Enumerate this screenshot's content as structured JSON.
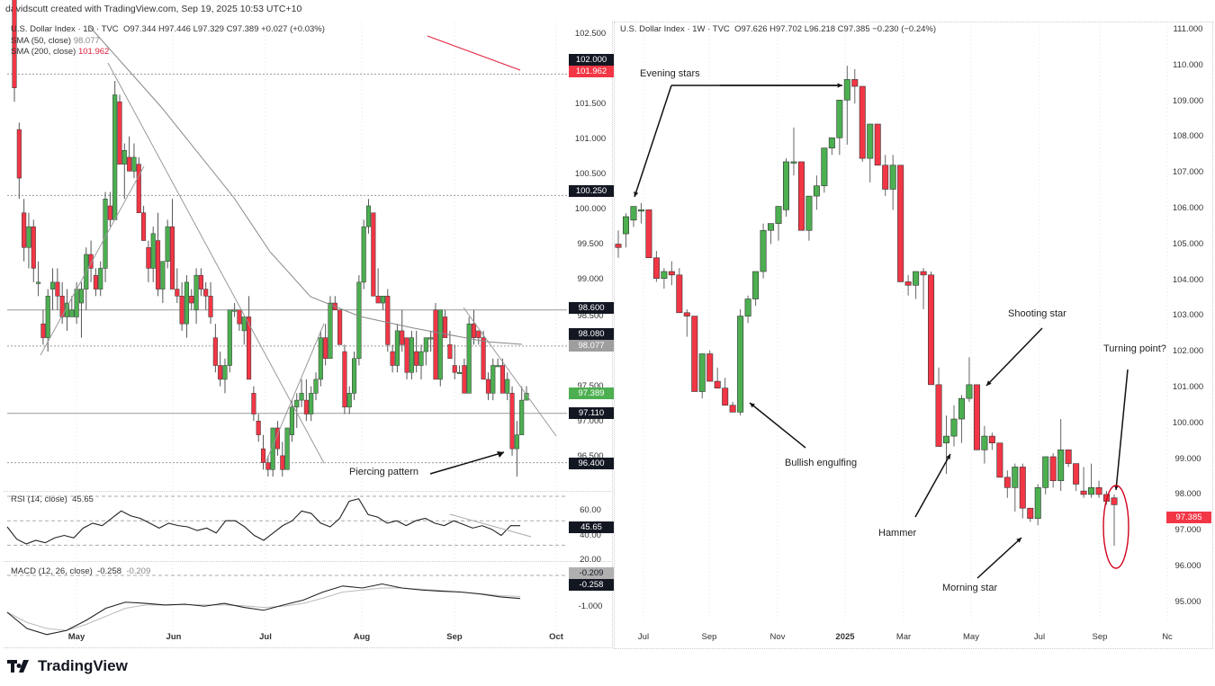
{
  "credit": "davidscutt created with TradingView.com, Sep 19, 2025 10:53 UTC+10",
  "brand": {
    "name": "TradingView",
    "icon": "tradingview-logo-icon"
  },
  "colors": {
    "up": "#4caf50",
    "down": "#f23645",
    "text": "#131722",
    "grid": "#d8d8d8",
    "sma50": "#9e9e9e",
    "sma200": "#e0203a",
    "annotation_ellipse": "#d0021b"
  },
  "left_chart": {
    "legend": {
      "title": "U.S. Dollar Index · 1D · TVC",
      "ohlc": "O97.344  H97.446  L97.329  C97.389  +0.027 (+0.03%)",
      "sma50_label": "SMA (50, close)",
      "sma50_value": "98.077",
      "sma200_label": "SMA (200, close)",
      "sma200_value": "101.962"
    },
    "y_axis": [
      "102.500",
      "101.500",
      "101.000",
      "100.500",
      "100.000",
      "99.500",
      "99.000",
      "98.500",
      "97.500",
      "97.000",
      "96.500"
    ],
    "price_tags": [
      {
        "label": "102.000",
        "bg": "#131722"
      },
      {
        "label": "101.962",
        "bg": "#f23645"
      },
      {
        "label": "100.250",
        "bg": "#131722"
      },
      {
        "label": "98.600",
        "bg": "#131722"
      },
      {
        "label": "98.080",
        "bg": "#131722"
      },
      {
        "label": "98.077",
        "bg": "#9e9e9e"
      },
      {
        "label": "97.389",
        "bg": "#4caf50"
      },
      {
        "label": "97.110",
        "bg": "#131722"
      },
      {
        "label": "96.400",
        "bg": "#131722"
      }
    ],
    "x_axis": [
      "May",
      "Jun",
      "Jul",
      "Aug",
      "Sep",
      "Oct"
    ],
    "annotation": "Piercing pattern",
    "rsi": {
      "label": "RSI (14, close)",
      "value": "45.65",
      "ticks": [
        "60.00",
        "40.00",
        "20.00"
      ]
    },
    "macd": {
      "label": "MACD (12, 26, close)",
      "value": "-0.258",
      "signal": "-0.209",
      "ticks": [
        "-1.000"
      ],
      "tags": [
        "-0.209",
        "-0.258"
      ]
    }
  },
  "right_chart": {
    "legend": {
      "title": "U.S. Dollar Index · 1W · TVC",
      "ohlc": "O97.626  H97.702  L96.218  C97.385  −0.230 (−0.24%)"
    },
    "y_axis": [
      "111.000",
      "110.000",
      "109.000",
      "108.000",
      "107.000",
      "106.000",
      "105.000",
      "104.000",
      "103.000",
      "102.000",
      "101.000",
      "100.000",
      "99.000",
      "98.000",
      "97.000",
      "96.000",
      "95.000"
    ],
    "price_tag": {
      "label": "97.385",
      "bg": "#f23645"
    },
    "x_axis": [
      "Jul",
      "Sep",
      "Nov",
      "2025",
      "Mar",
      "May",
      "Jul",
      "Sep",
      "Nc"
    ],
    "annotations": [
      "Evening stars",
      "Bullish engulfing",
      "Shooting star",
      "Turning point?",
      "Hammer",
      "Morning star"
    ]
  },
  "chart_data": [
    {
      "type": "candlestick",
      "title": "U.S. Dollar Index · 1D · TVC",
      "ylim": [
        96.2,
        102.6
      ],
      "xlabels": [
        "May",
        "Jun",
        "Jul",
        "Aug",
        "Sep",
        "Oct"
      ],
      "ohlc": [
        [
          103.2,
          103.4,
          101.6,
          101.8
        ],
        [
          101.2,
          101.3,
          100.2,
          100.5
        ],
        [
          100.0,
          100.2,
          99.3,
          99.5
        ],
        [
          99.5,
          100.0,
          99.2,
          99.8
        ],
        [
          99.8,
          99.9,
          99.0,
          99.2
        ],
        [
          99.0,
          99.3,
          98.8,
          99.0
        ],
        [
          98.4,
          98.6,
          98.1,
          98.2
        ],
        [
          98.2,
          98.9,
          98.0,
          98.8
        ],
        [
          98.9,
          99.2,
          98.6,
          99.0
        ],
        [
          99.0,
          99.2,
          98.6,
          98.8
        ],
        [
          98.8,
          99.0,
          98.4,
          98.5
        ],
        [
          98.5,
          98.9,
          98.3,
          98.7
        ],
        [
          98.5,
          98.8,
          98.5,
          98.6
        ],
        [
          98.5,
          99.0,
          98.4,
          98.9
        ],
        [
          98.7,
          99.0,
          98.2,
          98.9
        ],
        [
          98.9,
          99.5,
          98.6,
          99.4
        ],
        [
          99.4,
          99.6,
          99.0,
          99.2
        ],
        [
          99.1,
          99.2,
          98.8,
          98.9
        ],
        [
          98.9,
          99.3,
          98.8,
          99.2
        ],
        [
          99.2,
          100.3,
          99.0,
          100.2
        ],
        [
          100.1,
          100.3,
          99.8,
          99.9
        ],
        [
          99.9,
          101.9,
          99.9,
          101.7
        ],
        [
          101.6,
          101.7,
          100.7,
          100.7
        ],
        [
          100.7,
          101.0,
          100.2,
          100.9
        ],
        [
          100.8,
          101.1,
          100.6,
          100.6
        ],
        [
          100.6,
          101.0,
          100.5,
          100.8
        ],
        [
          100.7,
          100.8,
          100.0,
          100.0
        ],
        [
          100.0,
          100.1,
          99.6,
          99.6
        ],
        [
          99.5,
          99.6,
          99.0,
          99.2
        ],
        [
          99.2,
          99.8,
          99.0,
          99.7
        ],
        [
          99.6,
          100.0,
          98.8,
          98.9
        ],
        [
          98.9,
          99.2,
          98.7,
          99.3
        ],
        [
          99.3,
          99.9,
          99.2,
          99.8
        ],
        [
          99.8,
          100.2,
          98.9,
          98.9
        ],
        [
          98.9,
          99.2,
          98.7,
          98.8
        ],
        [
          98.8,
          99.0,
          98.3,
          98.4
        ],
        [
          98.4,
          99.1,
          98.2,
          99.0
        ],
        [
          98.8,
          98.9,
          98.6,
          98.7
        ],
        [
          98.6,
          99.2,
          98.4,
          99.1
        ],
        [
          99.1,
          99.2,
          98.8,
          98.9
        ],
        [
          98.9,
          99.0,
          98.6,
          98.8
        ],
        [
          98.8,
          99.0,
          98.4,
          98.5
        ],
        [
          98.2,
          98.4,
          97.7,
          97.8
        ],
        [
          97.8,
          98.0,
          97.5,
          97.6
        ],
        [
          97.6,
          97.9,
          97.4,
          97.8
        ],
        [
          97.8,
          98.6,
          97.7,
          98.6
        ],
        [
          98.6,
          98.7,
          98.5,
          98.6
        ],
        [
          98.6,
          98.6,
          98.3,
          98.4
        ],
        [
          98.3,
          98.5,
          98.1,
          98.5
        ],
        [
          98.5,
          98.8,
          97.6,
          97.6
        ],
        [
          97.4,
          97.5,
          97.0,
          97.1
        ],
        [
          97.0,
          97.1,
          96.7,
          96.8
        ],
        [
          96.6,
          96.8,
          96.3,
          96.4
        ],
        [
          96.4,
          96.5,
          96.2,
          96.3
        ],
        [
          96.3,
          96.9,
          96.2,
          96.9
        ],
        [
          96.9,
          97.0,
          96.5,
          96.6
        ],
        [
          96.5,
          96.7,
          96.2,
          96.3
        ],
        [
          96.3,
          96.9,
          96.3,
          96.9
        ],
        [
          96.8,
          97.3,
          96.7,
          97.2
        ],
        [
          97.2,
          97.4,
          96.9,
          97.3
        ],
        [
          97.3,
          97.6,
          97.2,
          97.4
        ],
        [
          97.3,
          97.6,
          97.0,
          97.1
        ],
        [
          97.1,
          97.5,
          97.0,
          97.4
        ],
        [
          97.4,
          97.7,
          97.3,
          97.6
        ],
        [
          97.6,
          98.3,
          97.5,
          98.2
        ],
        [
          98.2,
          98.4,
          97.8,
          97.9
        ],
        [
          97.9,
          98.8,
          97.9,
          98.7
        ],
        [
          98.7,
          98.8,
          98.6,
          98.6
        ],
        [
          98.6,
          98.6,
          98.1,
          98.1
        ],
        [
          98.0,
          98.1,
          97.1,
          97.2
        ],
        [
          97.2,
          97.5,
          97.1,
          97.4
        ],
        [
          97.4,
          98.0,
          97.3,
          97.9
        ],
        [
          97.9,
          99.1,
          97.8,
          99.0
        ],
        [
          99.0,
          99.9,
          98.9,
          99.8
        ],
        [
          99.8,
          100.2,
          99.7,
          100.1
        ],
        [
          100.0,
          100.0,
          98.8,
          98.8
        ],
        [
          98.8,
          99.2,
          98.7,
          98.7
        ],
        [
          98.7,
          98.8,
          98.6,
          98.8
        ],
        [
          98.8,
          98.9,
          98.0,
          98.1
        ],
        [
          98.0,
          98.1,
          97.7,
          97.8
        ],
        [
          97.8,
          98.4,
          97.7,
          98.3
        ],
        [
          98.3,
          98.6,
          98.0,
          98.1
        ],
        [
          98.2,
          98.2,
          97.6,
          97.7
        ],
        [
          97.7,
          98.3,
          97.6,
          98.2
        ],
        [
          98.0,
          98.3,
          97.7,
          97.8
        ],
        [
          97.8,
          98.1,
          97.6,
          98.0
        ],
        [
          98.0,
          98.2,
          97.8,
          98.2
        ],
        [
          98.2,
          98.3,
          98.0,
          98.2
        ],
        [
          98.6,
          98.7,
          97.6,
          97.6
        ],
        [
          97.6,
          98.6,
          97.5,
          98.6
        ],
        [
          98.5,
          98.6,
          98.2,
          98.2
        ],
        [
          98.1,
          98.3,
          97.9,
          97.9
        ],
        [
          97.8,
          98.1,
          97.6,
          97.7
        ],
        [
          97.7,
          97.8,
          97.7,
          97.7
        ],
        [
          97.8,
          97.9,
          97.4,
          97.4
        ],
        [
          97.4,
          98.5,
          97.4,
          98.4
        ],
        [
          98.4,
          98.6,
          98.1,
          98.2
        ],
        [
          98.3,
          98.3,
          98.1,
          98.2
        ],
        [
          98.2,
          98.3,
          97.6,
          97.6
        ],
        [
          97.6,
          97.7,
          97.3,
          97.4
        ],
        [
          97.4,
          97.9,
          97.3,
          97.8
        ],
        [
          97.8,
          97.9,
          97.8,
          97.8
        ],
        [
          97.8,
          97.9,
          97.4,
          97.4
        ],
        [
          97.4,
          97.7,
          97.3,
          97.6
        ],
        [
          97.4,
          97.5,
          96.5,
          96.6
        ],
        [
          96.6,
          97.0,
          96.2,
          96.8
        ],
        [
          96.8,
          97.5,
          96.8,
          97.3
        ],
        [
          97.3,
          97.5,
          97.3,
          97.4
        ]
      ],
      "horizontal_lines": [
        102.0,
        100.25,
        98.6,
        98.08,
        97.11,
        96.4
      ],
      "last_close": 97.389
    },
    {
      "type": "line",
      "title": "RSI (14, close)",
      "ylim": [
        20,
        70
      ],
      "levels": [
        70,
        50,
        30
      ],
      "last_value": 45.65
    },
    {
      "type": "line",
      "title": "MACD (12, 26, close)",
      "series": [
        {
          "name": "MACD",
          "last": -0.258
        },
        {
          "name": "Signal",
          "last": -0.209
        }
      ]
    },
    {
      "type": "candlestick",
      "title": "U.S. Dollar Index · 1W · TVC",
      "ylim": [
        94.5,
        111.2
      ],
      "xlabels": [
        "Jul",
        "Sep",
        "Nov",
        "2025",
        "Mar",
        "May",
        "Jul",
        "Sep",
        "Nc"
      ],
      "ohlc": [
        [
          105.0,
          105.4,
          104.6,
          104.9
        ],
        [
          105.3,
          105.9,
          104.9,
          105.8
        ],
        [
          105.7,
          106.1,
          105.5,
          106.1
        ],
        [
          106.0,
          106.2,
          105.6,
          106.0
        ],
        [
          106.0,
          106.0,
          104.6,
          104.6
        ],
        [
          104.6,
          104.8,
          103.9,
          104.0
        ],
        [
          104.0,
          104.3,
          103.7,
          104.2
        ],
        [
          104.2,
          104.5,
          103.8,
          104.1
        ],
        [
          104.1,
          104.3,
          103.0,
          103.0
        ],
        [
          103.0,
          103.1,
          102.3,
          102.9
        ],
        [
          102.9,
          102.9,
          100.7,
          100.7
        ],
        [
          100.7,
          101.8,
          100.5,
          101.8
        ],
        [
          101.8,
          101.9,
          101.0,
          101.0
        ],
        [
          101.0,
          101.4,
          100.8,
          100.8
        ],
        [
          100.8,
          101.1,
          100.3,
          100.3
        ],
        [
          100.3,
          100.4,
          100.1,
          100.1
        ],
        [
          100.1,
          103.1,
          100.0,
          102.9
        ],
        [
          102.9,
          103.5,
          102.7,
          103.4
        ],
        [
          103.4,
          104.2,
          103.2,
          104.2
        ],
        [
          104.2,
          105.6,
          104.0,
          105.4
        ],
        [
          105.4,
          105.6,
          105.0,
          105.6
        ],
        [
          105.6,
          106.1,
          105.1,
          106.1
        ],
        [
          106.0,
          107.5,
          105.8,
          107.4
        ],
        [
          107.4,
          108.4,
          107.0,
          107.4
        ],
        [
          107.4,
          107.4,
          105.4,
          105.4
        ],
        [
          105.4,
          106.4,
          105.1,
          106.4
        ],
        [
          106.4,
          107.0,
          106.0,
          106.7
        ],
        [
          106.7,
          107.8,
          106.5,
          107.8
        ],
        [
          107.8,
          108.1,
          107.6,
          108.1
        ],
        [
          108.1,
          109.2,
          107.6,
          109.2
        ],
        [
          109.2,
          110.2,
          107.9,
          109.8
        ],
        [
          109.8,
          110.1,
          109.1,
          109.6
        ],
        [
          109.6,
          109.6,
          107.4,
          107.5
        ],
        [
          107.5,
          108.5,
          106.8,
          108.5
        ],
        [
          108.5,
          108.5,
          107.3,
          107.3
        ],
        [
          107.3,
          107.6,
          106.4,
          106.6
        ],
        [
          106.6,
          107.6,
          106.0,
          107.3
        ],
        [
          107.3,
          107.3,
          103.9,
          103.9
        ],
        [
          103.9,
          104.1,
          103.5,
          103.8
        ],
        [
          103.8,
          104.2,
          103.4,
          104.2
        ],
        [
          104.2,
          104.3,
          103.1,
          104.1
        ],
        [
          104.1,
          104.2,
          100.9,
          100.9
        ],
        [
          100.9,
          101.4,
          99.3,
          99.1
        ],
        [
          99.2,
          100.0,
          98.3,
          99.4
        ],
        [
          99.4,
          100.3,
          99.1,
          99.9
        ],
        [
          99.9,
          100.6,
          99.2,
          100.5
        ],
        [
          100.5,
          101.7,
          100.4,
          100.9
        ],
        [
          100.9,
          100.9,
          99.0,
          99.0
        ],
        [
          99.0,
          99.7,
          98.6,
          99.4
        ],
        [
          99.4,
          99.5,
          99.0,
          99.2
        ],
        [
          99.2,
          99.2,
          98.2,
          98.2
        ],
        [
          98.2,
          98.4,
          97.6,
          97.9
        ],
        [
          97.9,
          98.6,
          97.2,
          98.5
        ],
        [
          98.5,
          98.6,
          97.0,
          97.3
        ],
        [
          97.3,
          97.3,
          96.9,
          97.0
        ],
        [
          97.0,
          98.0,
          96.8,
          97.9
        ],
        [
          97.9,
          98.8,
          97.7,
          98.8
        ],
        [
          98.8,
          98.9,
          97.9,
          98.1
        ],
        [
          98.1,
          99.9,
          97.8,
          99.0
        ],
        [
          99.0,
          99.0,
          98.5,
          98.6
        ],
        [
          98.6,
          98.6,
          97.8,
          98.0
        ],
        [
          97.8,
          98.5,
          97.6,
          97.7
        ],
        [
          97.7,
          98.6,
          97.6,
          97.9
        ],
        [
          97.9,
          98.1,
          97.6,
          97.7
        ],
        [
          97.7,
          97.8,
          97.4,
          97.5
        ],
        [
          97.6,
          97.7,
          96.2,
          97.4
        ]
      ],
      "last_close": 97.385
    }
  ]
}
